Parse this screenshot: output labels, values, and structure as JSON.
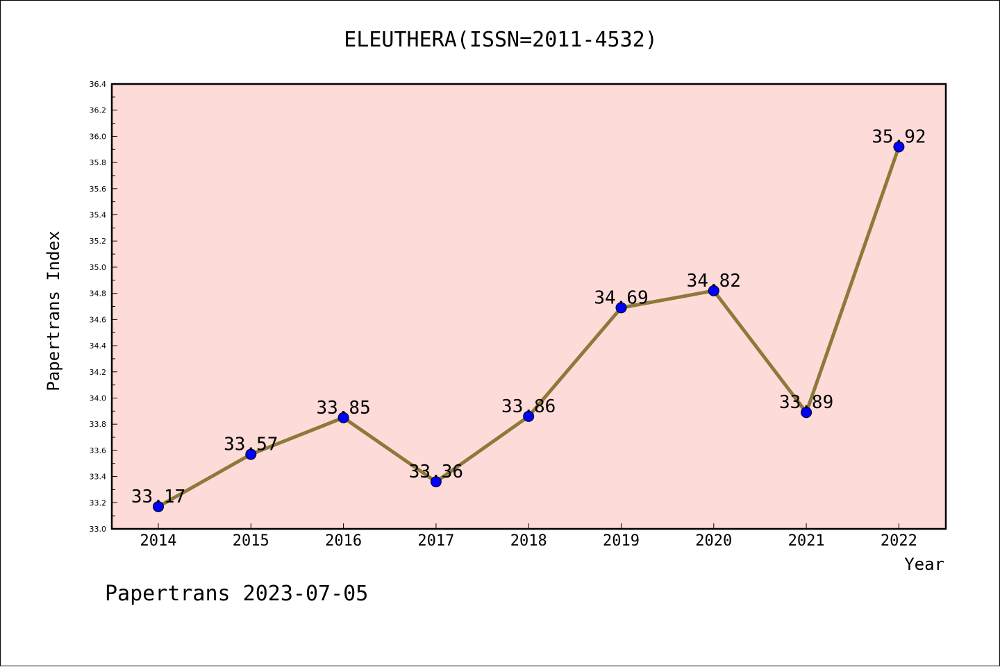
{
  "chart_data": {
    "type": "line",
    "title": "ELEUTHERA(ISSN=2011-4532)",
    "xlabel": "Year",
    "ylabel": "Papertrans Index",
    "x": [
      "2014",
      "2015",
      "2016",
      "2017",
      "2018",
      "2019",
      "2020",
      "2021",
      "2022"
    ],
    "series": [
      {
        "values": [
          33.17,
          33.57,
          33.85,
          33.36,
          33.86,
          34.69,
          34.82,
          33.89,
          35.92
        ],
        "labels": [
          "33.17",
          "33.57",
          "33.85",
          "33.36",
          "33.86",
          "34.69",
          "34.82",
          "33.89",
          "35.92"
        ],
        "line_color": "#8b7a3a",
        "marker_color": "#0000ff"
      }
    ],
    "ylim": [
      33.0,
      36.4
    ],
    "yticks": [
      "33.0",
      "33.2",
      "33.4",
      "33.6",
      "33.8",
      "34.0",
      "34.2",
      "34.4",
      "34.6",
      "34.8",
      "35.0",
      "35.2",
      "35.4",
      "35.6",
      "35.8",
      "36.0",
      "36.2",
      "36.4"
    ],
    "plot_background": "#fddbd9",
    "grid": false,
    "legend": "none"
  },
  "footer": "Papertrans 2023-07-05"
}
